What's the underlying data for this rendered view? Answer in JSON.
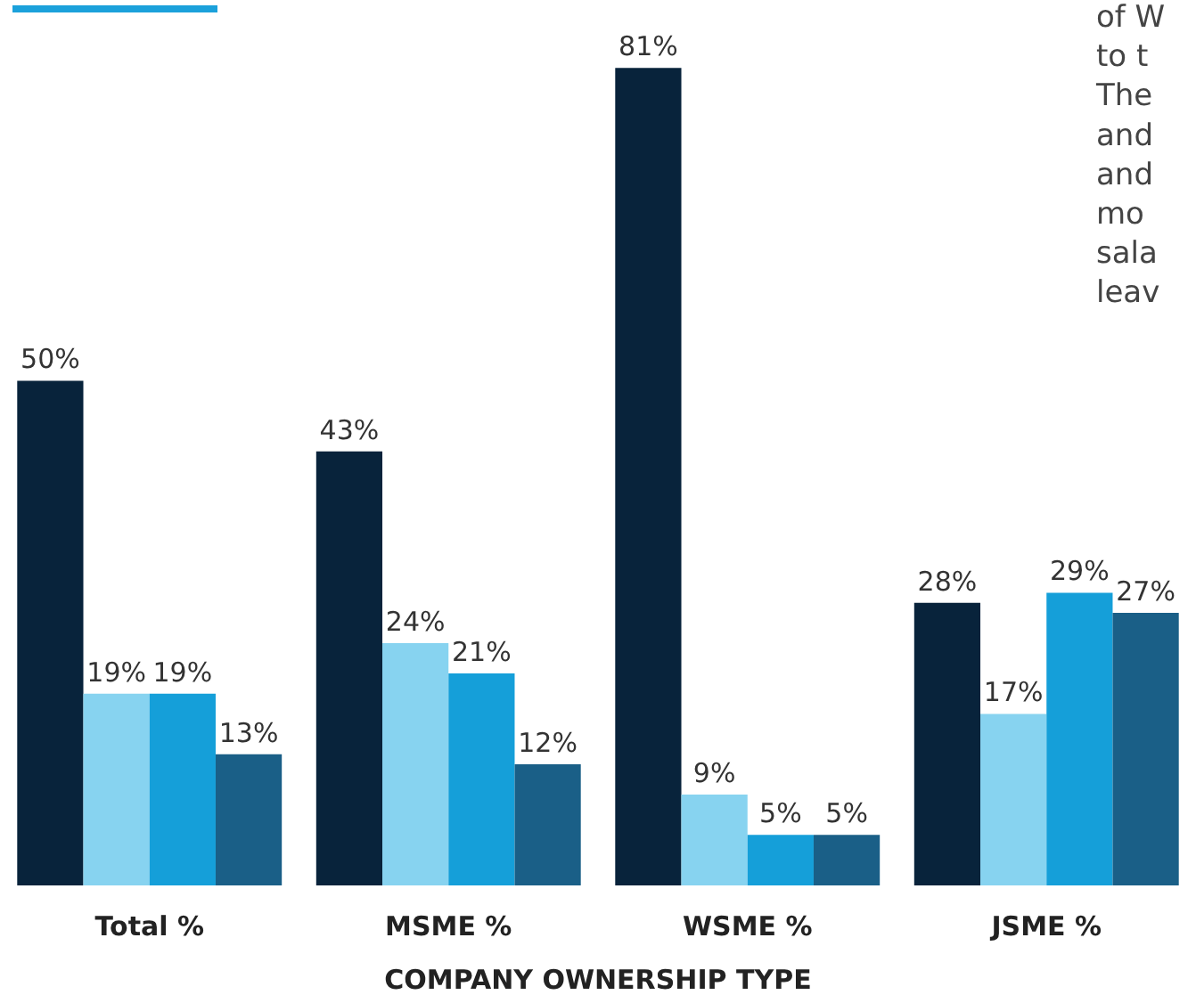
{
  "chart_data": {
    "type": "bar",
    "categories": [
      "Total %",
      "MSME %",
      "WSME %",
      "JSME %"
    ],
    "xlabel": "COMPANY OWNERSHIP TYPE",
    "series": [
      {
        "color": "#08233b",
        "values": [
          50,
          43,
          81,
          28
        ],
        "value_labels": [
          "50%",
          "43%",
          "81%",
          "28%"
        ]
      },
      {
        "color": "#87d3f0",
        "values": [
          19,
          24,
          9,
          17
        ],
        "value_labels": [
          "19%",
          "24%",
          "9%",
          "17%"
        ]
      },
      {
        "color": "#159fd9",
        "values": [
          19,
          21,
          5,
          29
        ],
        "value_labels": [
          "19%",
          "21%",
          "5%",
          "29%"
        ]
      },
      {
        "color": "#1a5f87",
        "values": [
          13,
          12,
          5,
          27
        ],
        "value_labels": [
          "13%",
          "12%",
          "5%",
          "27%"
        ]
      }
    ],
    "annotations": [
      "of W\nto t\nThe\nand\nand\nmo\nsala\nleav"
    ]
  }
}
